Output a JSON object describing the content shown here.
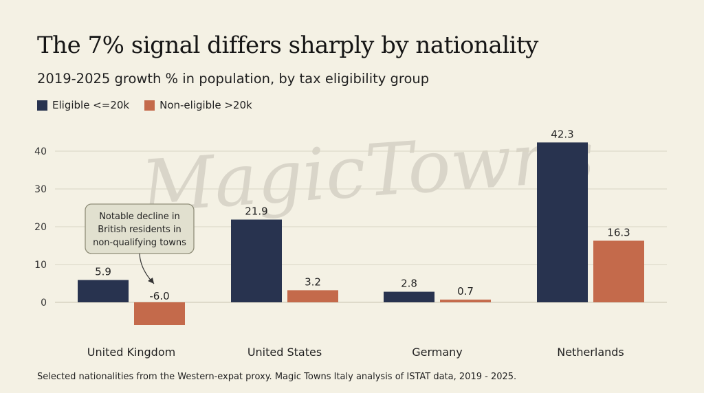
{
  "title": "The 7% signal differs sharply by nationality",
  "subtitle": "2019-2025 growth % in population, by tax eligibility group",
  "watermark": "MagicTowns",
  "footer": "Selected nationalities from the Western-expat proxy. Magic Towns Italy analysis of ISTAT data, 2019 - 2025.",
  "colors": {
    "eligible": "#28334f",
    "non_eligible": "#c46a4b",
    "grid": "#d9d5c3",
    "callout_bg": "#e1e0cf",
    "callout_border": "#8f8d78"
  },
  "chart_data": {
    "type": "bar",
    "categories": [
      "United Kingdom",
      "United States",
      "Germany",
      "Netherlands"
    ],
    "series": [
      {
        "name": "Eligible <=20k",
        "values": [
          5.9,
          21.9,
          2.8,
          42.3
        ]
      },
      {
        "name": "Non-eligible >20k",
        "values": [
          -6.0,
          3.2,
          0.7,
          16.3
        ]
      }
    ],
    "data_labels": [
      [
        "5.9",
        "21.9",
        "2.8",
        "42.3"
      ],
      [
        "-6.0",
        "3.2",
        "0.7",
        "16.3"
      ]
    ],
    "yticks": [
      0,
      10,
      20,
      30,
      40
    ],
    "ylim": [
      -6,
      45
    ],
    "grid": true,
    "legend_position": "top-left",
    "annotation": {
      "text_lines": [
        "Notable decline in",
        "British residents in",
        "non-qualifying towns"
      ],
      "points_to": {
        "category": "United Kingdom",
        "series": "Non-eligible >20k"
      }
    }
  }
}
